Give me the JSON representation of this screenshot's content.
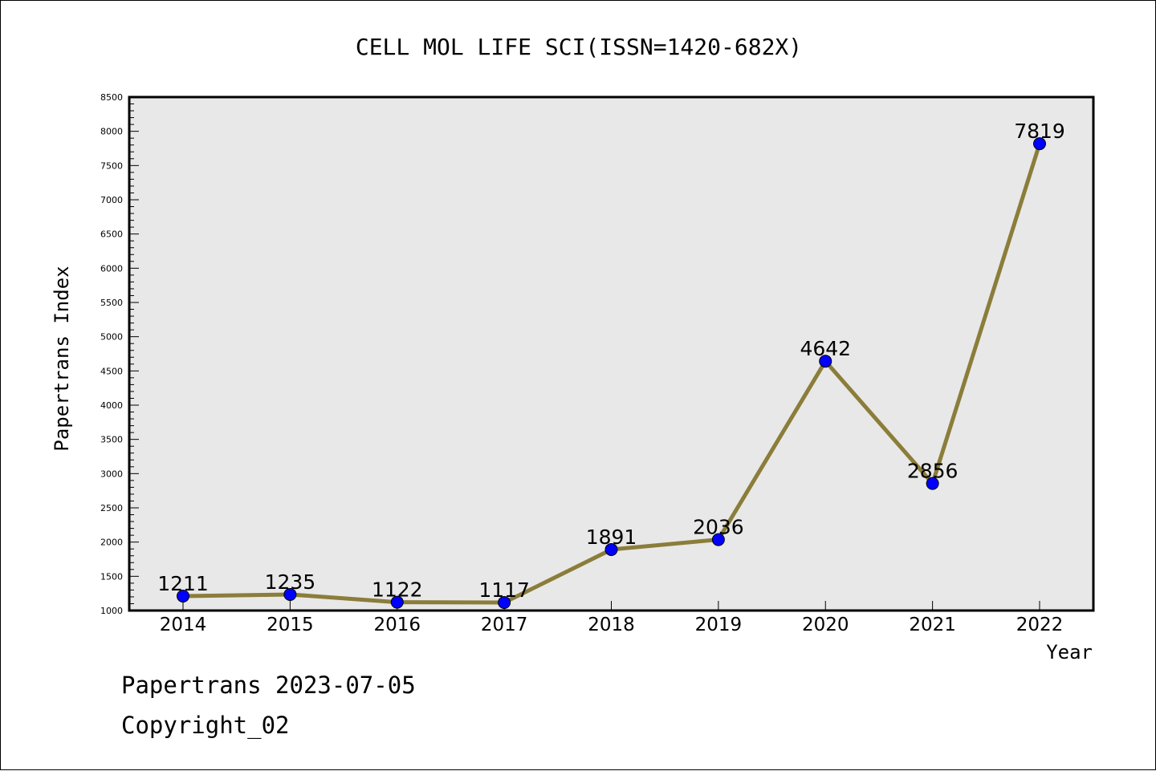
{
  "chart_data": {
    "type": "line",
    "title": "CELL MOL LIFE SCI(ISSN=1420-682X)",
    "xlabel": "Year",
    "ylabel": "Papertrans Index",
    "categories": [
      "2014",
      "2015",
      "2016",
      "2017",
      "2018",
      "2019",
      "2020",
      "2021",
      "2022"
    ],
    "series": [
      {
        "values": [
          1211,
          1235,
          1122,
          1117,
          1891,
          2036,
          4642,
          2856,
          7819
        ],
        "data_labels": [
          "1211",
          "1235",
          "1122",
          "1117",
          "1891",
          "2036",
          "4642",
          "2856",
          "7819"
        ]
      }
    ],
    "ylim": [
      1000,
      8500
    ],
    "yticks": [
      "1000",
      "1500",
      "2000",
      "2500",
      "3000",
      "3500",
      "4000",
      "4500",
      "5000",
      "5500",
      "6000",
      "6500",
      "7000",
      "7500",
      "8000",
      "8500"
    ],
    "ytick_values": [
      1000,
      1500,
      2000,
      2500,
      3000,
      3500,
      4000,
      4500,
      5000,
      5500,
      6000,
      6500,
      7000,
      7500,
      8000,
      8500
    ],
    "grid": false,
    "colors": {
      "plot_background": "#e8e8e8",
      "line": "#8b7d3a",
      "marker": "#0000ff",
      "marker_edge": "#000000"
    }
  },
  "footer": {
    "date_line": "Papertrans 2023-07-05",
    "copyright_line": "Copyright_02"
  }
}
